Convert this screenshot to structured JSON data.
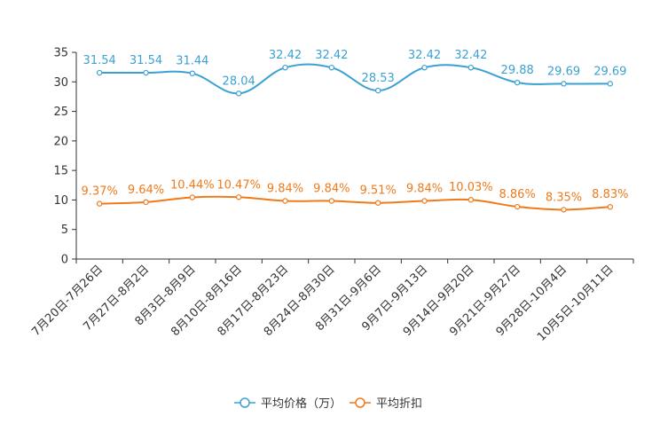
{
  "chart_data": {
    "type": "line",
    "title": "",
    "xlabel": "",
    "ylabel": "",
    "ylim": [
      0,
      35
    ],
    "yticks": [
      0,
      5,
      10,
      15,
      20,
      25,
      30,
      35
    ],
    "grid": false,
    "legend_position": "bottom",
    "categories": [
      "7月20日-7月26日",
      "7月27日-8月2日",
      "8月3日-8月9日",
      "8月10日-8月16日",
      "8月17日-8月23日",
      "8月24日-8月30日",
      "8月31日-9月6日",
      "9月7日-9月13日",
      "9月14日-9月20日",
      "9月21日-9月27日",
      "9月28日-10月4日",
      "10月5日-10月11日"
    ],
    "series": [
      {
        "name": "平均价格（万）",
        "color": "#3ba1d3",
        "values": [
          31.54,
          31.54,
          31.44,
          28.04,
          32.42,
          32.42,
          28.53,
          32.42,
          32.42,
          29.88,
          29.69,
          29.69
        ],
        "labels": [
          "31.54",
          "31.54",
          "31.44",
          "28.04",
          "32.42",
          "32.42",
          "28.53",
          "32.42",
          "32.42",
          "29.88",
          "29.69",
          "29.69"
        ]
      },
      {
        "name": "平均折扣",
        "color": "#f07a1a",
        "values": [
          9.37,
          9.64,
          10.44,
          10.47,
          9.84,
          9.84,
          9.51,
          9.84,
          10.03,
          8.86,
          8.35,
          8.83
        ],
        "labels": [
          "9.37%",
          "9.64%",
          "10.44%",
          "10.47%",
          "9.84%",
          "9.84%",
          "9.51%",
          "9.84%",
          "10.03%",
          "8.86%",
          "8.35%",
          "8.83%"
        ]
      }
    ]
  }
}
